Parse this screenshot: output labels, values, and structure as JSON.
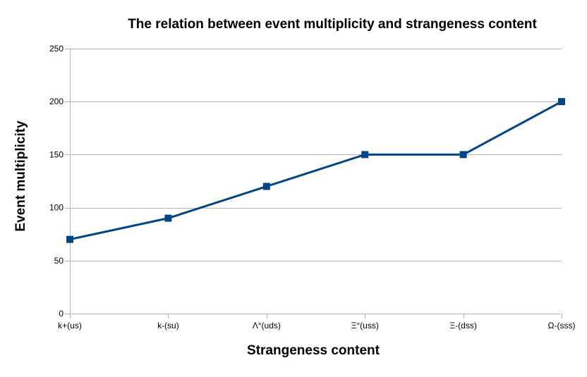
{
  "chart_data": {
    "type": "line",
    "title": "The relation between event multiplicity and strangeness content",
    "xlabel": "Strangeness content",
    "ylabel": "Event multiplicity",
    "categories": [
      "k+(us)",
      "k-(su)",
      "Λ°(uds)",
      "Ξ°(uss)",
      "Ξ-(dss)",
      "Ω-(sss)"
    ],
    "series": [
      {
        "name": "Event multiplicity",
        "values": [
          70,
          90,
          120,
          150,
          150,
          200
        ],
        "color": "#004586"
      }
    ],
    "ylim": [
      0,
      250
    ],
    "yticks": [
      0,
      50,
      100,
      150,
      200,
      250
    ],
    "grid": true,
    "legend": "none"
  }
}
